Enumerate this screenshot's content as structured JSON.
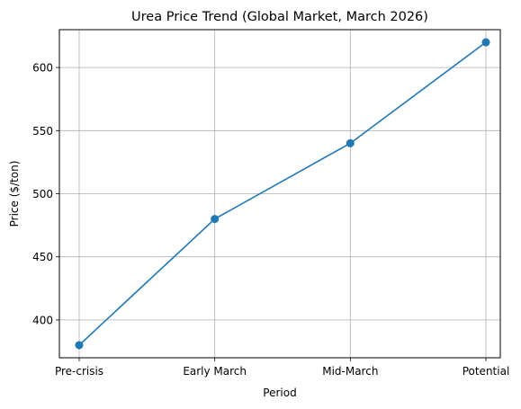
{
  "chart_data": {
    "type": "line",
    "title": "Urea Price Trend (Global Market, March 2026)",
    "xlabel": "Period",
    "ylabel": "Price ($/ton)",
    "categories": [
      "Pre-crisis",
      "Early March",
      "Mid-March",
      "Potential"
    ],
    "series": [
      {
        "values": [
          380,
          480,
          540,
          620
        ],
        "color": "#1f77b4",
        "marker": "circle"
      }
    ],
    "ylim": [
      370,
      630
    ],
    "yticks": [
      400,
      450,
      500,
      550,
      600
    ],
    "grid": true,
    "legend": "none",
    "colors": {
      "grid": "#b0b0b0",
      "axis": "#000000"
    }
  }
}
